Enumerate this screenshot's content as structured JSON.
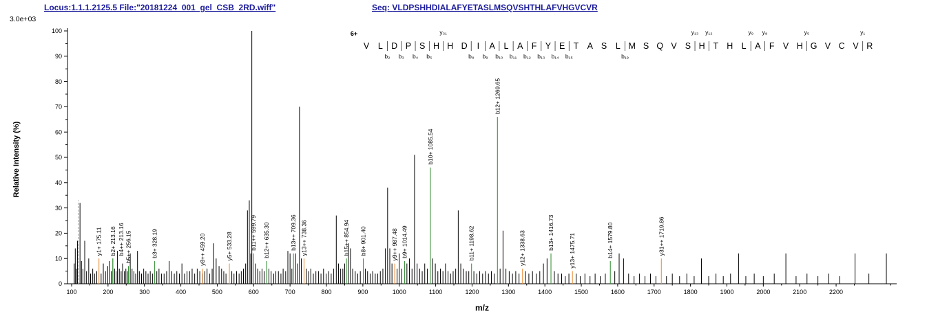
{
  "header": {
    "locus_file": "Locus:1.1.1.2125.5 File:\"20181224_001_gel_CSB_2RD.wiff\"",
    "seq_label": "Seq:",
    "sequence": "VLDPSHHDIALAFYETASLMSQVSHTHLAFVHGVCVR"
  },
  "chart_data": {
    "type": "bar",
    "subtype": "ms2-peptide-fragmentation-spectrum",
    "title": "",
    "xlabel": "m/z",
    "ylabel": "Relative Intensity (%)",
    "y_scale_label": "3.0e+03",
    "xlim": [
      100,
      2360
    ],
    "ylim": [
      0,
      100
    ],
    "x_ticks": [
      100,
      200,
      300,
      400,
      500,
      600,
      700,
      800,
      900,
      1000,
      1100,
      1200,
      1300,
      1400,
      1500,
      1600,
      1700,
      1800,
      1900,
      2000,
      2100,
      2200
    ],
    "y_ticks": [
      0,
      10,
      20,
      30,
      40,
      50,
      60,
      70,
      80,
      90,
      100
    ],
    "grid": false,
    "legend": "none",
    "colors": {
      "peak": "#000000",
      "dashed_peak": "#999999",
      "b_ion": "#2b8a2b",
      "y_ion": "#e8872e",
      "charge": "#2b2bd0",
      "axis": "#000000",
      "header_text": "#1c1c9c"
    },
    "peptide": {
      "charge_label": "6+",
      "sequence": "VLDPSHHDIALAFYETASLMSQVSHTHLAFVHGVCVR",
      "b_marker_positions": [
        2,
        3,
        4,
        5,
        8,
        9,
        10,
        11,
        12,
        13,
        14,
        15,
        19
      ],
      "y_marker_numbers": [
        31,
        13,
        12,
        9,
        8,
        5,
        1
      ]
    },
    "annotated_peaks": [
      {
        "ion": "y",
        "label": "y1+ 175.11",
        "mz": 175.11,
        "intensity": 10
      },
      {
        "ion": "b",
        "label": "b2+ 213.16",
        "mz": 213.16,
        "intensity": 10
      },
      {
        "ion": "b",
        "label": "b4++ 213.16",
        "mz": 213.16,
        "intensity": 10,
        "label_dx": 12
      },
      {
        "ion": "b",
        "label": "b5++ 256.15",
        "mz": 256.15,
        "intensity": 7
      },
      {
        "ion": "b",
        "label": "b3+ 328.19",
        "mz": 328.19,
        "intensity": 9
      },
      {
        "ion": "y",
        "label": "y8++ 459.20",
        "mz": 459.2,
        "intensity": 6
      },
      {
        "ion": "y",
        "label": "y5+ 533.28",
        "mz": 533.28,
        "intensity": 8
      },
      {
        "ion": "b",
        "label": "b11++ 599.79",
        "mz": 599.79,
        "intensity": 12
      },
      {
        "ion": "b",
        "label": "b12++ 635.30",
        "mz": 635.3,
        "intensity": 9
      },
      {
        "ion": "b",
        "label": "b13++ 709.36",
        "mz": 709.36,
        "intensity": 12
      },
      {
        "ion": "y",
        "label": "y13++ 738.36",
        "mz": 738.36,
        "intensity": 10
      },
      {
        "ion": "b",
        "label": "b15++ 854.94",
        "mz": 854.94,
        "intensity": 10
      },
      {
        "ion": "b",
        "label": "b8+ 901.40",
        "mz": 901.4,
        "intensity": 10
      },
      {
        "ion": "y",
        "label": "y9++ 987.48",
        "mz": 987.48,
        "intensity": 8
      },
      {
        "ion": "b",
        "label": "b9+ 1014.49",
        "mz": 1014.49,
        "intensity": 9
      },
      {
        "ion": "b",
        "label": "b10+ 1085.54",
        "mz": 1085.54,
        "intensity": 46
      },
      {
        "ion": "b",
        "label": "b11+ 1198.62",
        "mz": 1198.62,
        "intensity": 8
      },
      {
        "ion": "b",
        "label": "b12+ 1269.65",
        "mz": 1269.65,
        "intensity": 66
      },
      {
        "ion": "y",
        "label": "y12+ 1338.63",
        "mz": 1338.63,
        "intensity": 6
      },
      {
        "ion": "b",
        "label": "b13+ 1416.73",
        "mz": 1416.73,
        "intensity": 12
      },
      {
        "ion": "y",
        "label": "y13+ 1475.71",
        "mz": 1475.71,
        "intensity": 5
      },
      {
        "ion": "b",
        "label": "b14+ 1579.80",
        "mz": 1579.8,
        "intensity": 9
      },
      {
        "ion": "y",
        "label": "y31++ 1719.86",
        "mz": 1719.86,
        "intensity": 10
      }
    ],
    "dashed_peaks": [
      [
        118,
        33
      ]
    ],
    "peaks": [
      [
        107,
        8
      ],
      [
        110,
        14
      ],
      [
        113,
        6
      ],
      [
        116,
        17
      ],
      [
        123,
        32
      ],
      [
        127,
        9
      ],
      [
        131,
        6
      ],
      [
        136,
        17
      ],
      [
        141,
        5
      ],
      [
        147,
        10
      ],
      [
        152,
        4
      ],
      [
        158,
        6
      ],
      [
        163,
        4
      ],
      [
        169,
        5
      ],
      [
        181,
        4
      ],
      [
        187,
        8
      ],
      [
        193,
        5
      ],
      [
        199,
        7
      ],
      [
        204,
        9
      ],
      [
        209,
        5
      ],
      [
        218,
        6
      ],
      [
        222,
        5
      ],
      [
        226,
        13
      ],
      [
        231,
        6
      ],
      [
        236,
        5
      ],
      [
        240,
        8
      ],
      [
        245,
        5
      ],
      [
        249,
        6
      ],
      [
        253,
        5
      ],
      [
        261,
        12
      ],
      [
        266,
        6
      ],
      [
        271,
        5
      ],
      [
        276,
        4
      ],
      [
        281,
        13
      ],
      [
        286,
        5
      ],
      [
        292,
        4
      ],
      [
        298,
        6
      ],
      [
        304,
        5
      ],
      [
        310,
        4
      ],
      [
        316,
        5
      ],
      [
        322,
        4
      ],
      [
        334,
        5
      ],
      [
        340,
        6
      ],
      [
        347,
        4
      ],
      [
        354,
        4
      ],
      [
        361,
        5
      ],
      [
        368,
        9
      ],
      [
        375,
        5
      ],
      [
        382,
        4
      ],
      [
        389,
        5
      ],
      [
        396,
        4
      ],
      [
        403,
        8
      ],
      [
        410,
        4
      ],
      [
        417,
        5
      ],
      [
        424,
        5
      ],
      [
        431,
        6
      ],
      [
        438,
        4
      ],
      [
        445,
        6
      ],
      [
        452,
        5
      ],
      [
        459,
        4
      ],
      [
        466,
        5
      ],
      [
        472,
        6
      ],
      [
        479,
        4
      ],
      [
        486,
        6
      ],
      [
        490,
        16
      ],
      [
        497,
        10
      ],
      [
        505,
        7
      ],
      [
        512,
        6
      ],
      [
        518,
        5
      ],
      [
        524,
        4
      ],
      [
        540,
        5
      ],
      [
        546,
        4
      ],
      [
        553,
        5
      ],
      [
        560,
        4
      ],
      [
        566,
        5
      ],
      [
        572,
        6
      ],
      [
        578,
        8
      ],
      [
        583,
        29
      ],
      [
        588,
        33
      ],
      [
        592,
        12
      ],
      [
        595,
        100
      ],
      [
        605,
        8
      ],
      [
        611,
        6
      ],
      [
        617,
        5
      ],
      [
        623,
        6
      ],
      [
        629,
        5
      ],
      [
        642,
        6
      ],
      [
        648,
        5
      ],
      [
        655,
        4
      ],
      [
        661,
        5
      ],
      [
        668,
        5
      ],
      [
        675,
        4
      ],
      [
        681,
        6
      ],
      [
        688,
        5
      ],
      [
        694,
        13
      ],
      [
        700,
        12
      ],
      [
        705,
        6
      ],
      [
        715,
        12
      ],
      [
        721,
        8
      ],
      [
        726,
        70
      ],
      [
        731,
        10
      ],
      [
        745,
        6
      ],
      [
        751,
        5
      ],
      [
        757,
        6
      ],
      [
        764,
        4
      ],
      [
        771,
        5
      ],
      [
        778,
        5
      ],
      [
        785,
        4
      ],
      [
        792,
        6
      ],
      [
        799,
        4
      ],
      [
        806,
        5
      ],
      [
        813,
        4
      ],
      [
        820,
        6
      ],
      [
        827,
        27
      ],
      [
        833,
        8
      ],
      [
        839,
        6
      ],
      [
        845,
        6
      ],
      [
        850,
        8
      ],
      [
        860,
        16
      ],
      [
        866,
        14
      ],
      [
        872,
        6
      ],
      [
        879,
        5
      ],
      [
        886,
        4
      ],
      [
        893,
        5
      ],
      [
        907,
        6
      ],
      [
        913,
        5
      ],
      [
        920,
        4
      ],
      [
        927,
        5
      ],
      [
        934,
        4
      ],
      [
        941,
        4
      ],
      [
        948,
        5
      ],
      [
        955,
        6
      ],
      [
        962,
        14
      ],
      [
        968,
        38
      ],
      [
        974,
        14
      ],
      [
        980,
        8
      ],
      [
        994,
        6
      ],
      [
        1000,
        12
      ],
      [
        1007,
        6
      ],
      [
        1021,
        8
      ],
      [
        1028,
        10
      ],
      [
        1035,
        6
      ],
      [
        1042,
        51
      ],
      [
        1049,
        8
      ],
      [
        1056,
        6
      ],
      [
        1063,
        5
      ],
      [
        1070,
        8
      ],
      [
        1077,
        6
      ],
      [
        1092,
        10
      ],
      [
        1099,
        8
      ],
      [
        1106,
        5
      ],
      [
        1113,
        6
      ],
      [
        1120,
        5
      ],
      [
        1127,
        8
      ],
      [
        1134,
        5
      ],
      [
        1141,
        4
      ],
      [
        1148,
        5
      ],
      [
        1155,
        6
      ],
      [
        1162,
        29
      ],
      [
        1169,
        8
      ],
      [
        1176,
        6
      ],
      [
        1184,
        5
      ],
      [
        1191,
        5
      ],
      [
        1205,
        5
      ],
      [
        1213,
        4
      ],
      [
        1221,
        5
      ],
      [
        1229,
        4
      ],
      [
        1237,
        5
      ],
      [
        1245,
        4
      ],
      [
        1253,
        5
      ],
      [
        1261,
        4
      ],
      [
        1277,
        6
      ],
      [
        1285,
        21
      ],
      [
        1293,
        6
      ],
      [
        1302,
        5
      ],
      [
        1311,
        4
      ],
      [
        1320,
        5
      ],
      [
        1329,
        4
      ],
      [
        1347,
        5
      ],
      [
        1356,
        4
      ],
      [
        1366,
        5
      ],
      [
        1376,
        4
      ],
      [
        1386,
        5
      ],
      [
        1396,
        8
      ],
      [
        1406,
        10
      ],
      [
        1426,
        5
      ],
      [
        1436,
        4
      ],
      [
        1446,
        4
      ],
      [
        1456,
        3
      ],
      [
        1466,
        4
      ],
      [
        1486,
        4
      ],
      [
        1497,
        3
      ],
      [
        1510,
        4
      ],
      [
        1524,
        3
      ],
      [
        1538,
        4
      ],
      [
        1552,
        3
      ],
      [
        1566,
        4
      ],
      [
        1592,
        5
      ],
      [
        1604,
        12
      ],
      [
        1616,
        10
      ],
      [
        1630,
        4
      ],
      [
        1645,
        3
      ],
      [
        1660,
        4
      ],
      [
        1675,
        3
      ],
      [
        1690,
        4
      ],
      [
        1705,
        3
      ],
      [
        1734,
        3
      ],
      [
        1750,
        4
      ],
      [
        1770,
        3
      ],
      [
        1790,
        4
      ],
      [
        1810,
        3
      ],
      [
        1830,
        10
      ],
      [
        1850,
        3
      ],
      [
        1870,
        4
      ],
      [
        1890,
        3
      ],
      [
        1910,
        4
      ],
      [
        1932,
        12
      ],
      [
        1952,
        3
      ],
      [
        1975,
        4
      ],
      [
        2000,
        3
      ],
      [
        2030,
        4
      ],
      [
        2062,
        12
      ],
      [
        2090,
        3
      ],
      [
        2120,
        4
      ],
      [
        2150,
        3
      ],
      [
        2180,
        4
      ],
      [
        2210,
        3
      ],
      [
        2252,
        12
      ],
      [
        2290,
        4
      ],
      [
        2338,
        12
      ]
    ]
  }
}
